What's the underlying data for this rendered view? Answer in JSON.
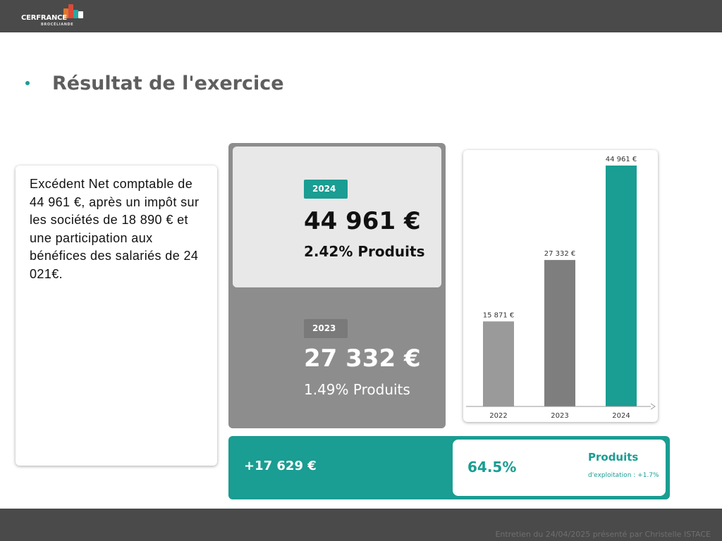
{
  "header": {
    "logo_name": "CERFRANCE",
    "logo_sub": "BROCÉLIANDE",
    "logo_colors": [
      "#e0772a",
      "#d94a3b",
      "#2aa7a0",
      "#ffffff"
    ]
  },
  "slide": {
    "title": "Résultat de l'exercice"
  },
  "summary_text": "Excédent Net comptable de 44 961 €, après un impôt sur les sociétés de 18 890 € et une participation aux bénéfices des salariés de 24 021€.",
  "comparison": {
    "current": {
      "year": "2024",
      "amount": "44 961 €",
      "ratio": "2.42% Produits"
    },
    "previous": {
      "year": "2023",
      "amount": "27 332 €",
      "ratio": "1.49% Produits"
    }
  },
  "variation": {
    "amount": "+17 629 €",
    "percent": "64.5%",
    "metric_label": "Produits",
    "metric_sub": "d'exploitation : +1.7%"
  },
  "chart_data": {
    "type": "bar",
    "categories": [
      "2022",
      "2023",
      "2024"
    ],
    "values": [
      15871,
      27332,
      44961
    ],
    "data_labels": [
      "15 871 €",
      "27 332 €",
      "44 961 €"
    ],
    "colors": [
      "#9a9a9a",
      "#7e7e7e",
      "#1a9d92"
    ],
    "ylim": [
      0,
      44961
    ],
    "grid": false,
    "legend": "none"
  },
  "footer": {
    "text": "Entretien du 24/04/2025 présenté par Christelle ISTACE"
  },
  "colors": {
    "accent": "#1a9d92",
    "bar_dark": "#4a4a4a",
    "panel_gray": "#8d8d8d",
    "panel_light": "#e8e8e8"
  }
}
